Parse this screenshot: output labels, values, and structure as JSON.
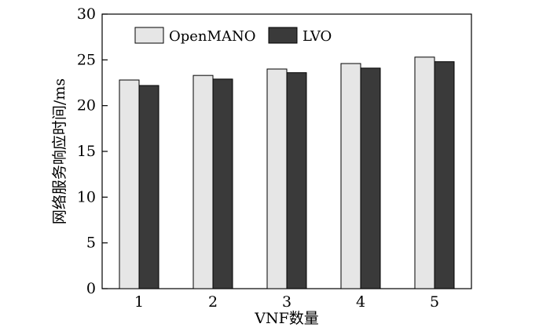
{
  "chart_data": {
    "type": "bar",
    "categories": [
      "1",
      "2",
      "3",
      "4",
      "5"
    ],
    "series": [
      {
        "name": "OpenMANO",
        "values": [
          22.8,
          23.3,
          24.0,
          24.6,
          25.3
        ],
        "color": "#e6e6e6"
      },
      {
        "name": "LVO",
        "values": [
          22.2,
          22.9,
          23.6,
          24.1,
          24.8
        ],
        "color": "#3a3a3a"
      }
    ],
    "xlabel": "VNF数量",
    "ylabel": "网络服务响应时间/ms",
    "ylim": [
      0,
      30
    ],
    "yticks": [
      0,
      5,
      10,
      15,
      20,
      25,
      30
    ],
    "grid": false,
    "legend_position": "top-left"
  }
}
